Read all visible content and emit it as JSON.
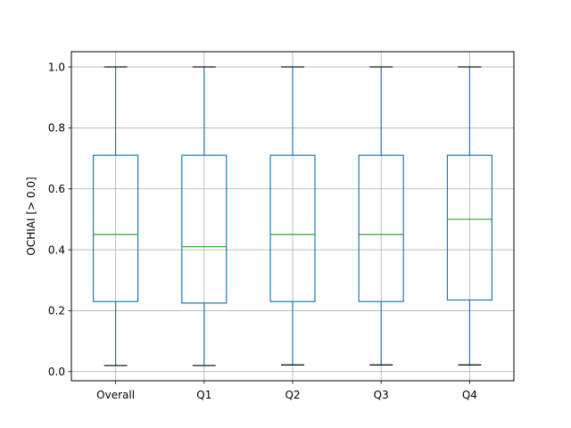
{
  "chart_data": {
    "type": "box",
    "title": "",
    "xlabel": "",
    "ylabel": "OCHIAI [> 0.0]",
    "ylim": [
      -0.03,
      1.05
    ],
    "yticks": [
      0.0,
      0.2,
      0.4,
      0.6,
      0.8,
      1.0
    ],
    "ytick_labels": [
      "0.0",
      "0.2",
      "0.4",
      "0.6",
      "0.8",
      "1.0"
    ],
    "grid": true,
    "categories": [
      "Overall",
      "Q1",
      "Q2",
      "Q3",
      "Q4"
    ],
    "boxes": [
      {
        "category": "Overall",
        "whisker_low": 0.02,
        "q1": 0.23,
        "median": 0.45,
        "q3": 0.71,
        "whisker_high": 1.0
      },
      {
        "category": "Q1",
        "whisker_low": 0.02,
        "q1": 0.225,
        "median": 0.41,
        "q3": 0.71,
        "whisker_high": 1.0
      },
      {
        "category": "Q2",
        "whisker_low": 0.022,
        "q1": 0.23,
        "median": 0.45,
        "q3": 0.71,
        "whisker_high": 1.0
      },
      {
        "category": "Q3",
        "whisker_low": 0.022,
        "q1": 0.23,
        "median": 0.45,
        "q3": 0.71,
        "whisker_high": 1.0
      },
      {
        "category": "Q4",
        "whisker_low": 0.022,
        "q1": 0.235,
        "median": 0.5,
        "q3": 0.71,
        "whisker_high": 1.0
      }
    ],
    "colors": {
      "box": "#1f77b4",
      "median": "#2ca02c",
      "cap": "#000000",
      "grid": "#b0b0b0",
      "axes": "#000000"
    }
  }
}
